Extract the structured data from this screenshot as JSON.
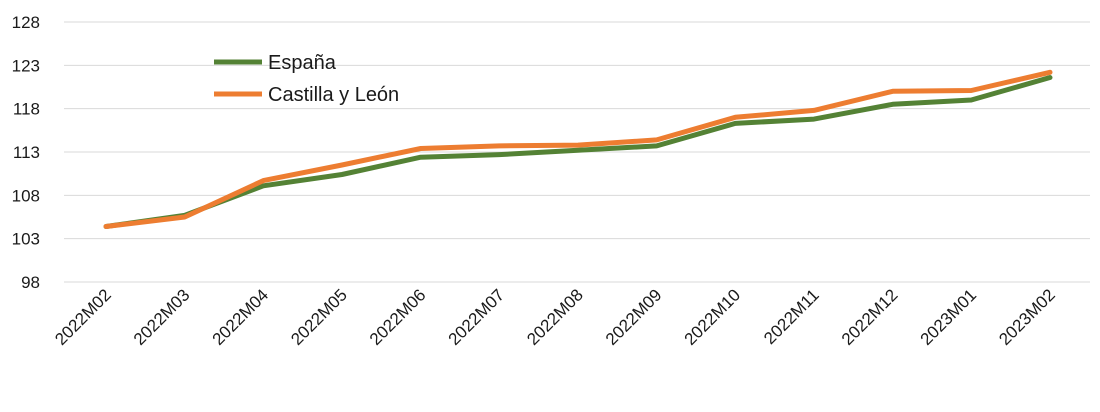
{
  "chart_data": {
    "type": "line",
    "categories": [
      "2022M02",
      "2022M03",
      "2022M04",
      "2022M05",
      "2022M06",
      "2022M07",
      "2022M08",
      "2022M09",
      "2022M10",
      "2022M11",
      "2022M12",
      "2023M01",
      "2023M02"
    ],
    "series": [
      {
        "name": "España",
        "color": "#548235",
        "values": [
          104.4,
          105.7,
          109.1,
          110.4,
          112.4,
          112.7,
          113.2,
          113.7,
          116.3,
          116.8,
          118.5,
          119.0,
          121.6
        ]
      },
      {
        "name": "Castilla y León",
        "color": "#ED7D31",
        "values": [
          104.4,
          105.5,
          109.7,
          111.5,
          113.4,
          113.7,
          113.8,
          114.4,
          117.0,
          117.8,
          120.0,
          120.1,
          122.2
        ]
      }
    ],
    "yticks": [
      98,
      103,
      108,
      113,
      118,
      123,
      128
    ],
    "ylim": [
      98,
      128
    ],
    "grid": true,
    "legend_position": "top-left"
  }
}
